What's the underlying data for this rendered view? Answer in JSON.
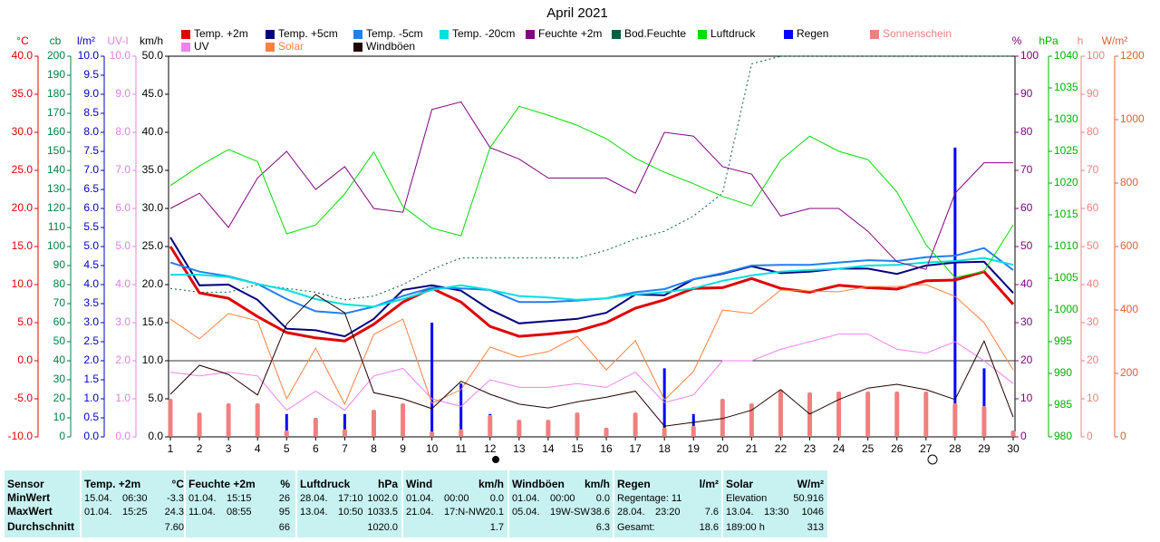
{
  "chart_data": {
    "type": "line",
    "title": "April 2021",
    "x": [
      1,
      2,
      3,
      4,
      5,
      6,
      7,
      8,
      9,
      10,
      11,
      12,
      13,
      14,
      15,
      16,
      17,
      18,
      19,
      20,
      21,
      22,
      23,
      24,
      25,
      26,
      27,
      28,
      29,
      30
    ],
    "xlim": [
      1,
      30
    ],
    "xticks": [
      1,
      2,
      3,
      4,
      5,
      6,
      7,
      8,
      9,
      10,
      11,
      12,
      13,
      14,
      15,
      16,
      17,
      18,
      19,
      20,
      21,
      22,
      23,
      24,
      25,
      26,
      27,
      28,
      29,
      30
    ],
    "axes": [
      {
        "label": "°C",
        "color": "#e00000",
        "side": "left",
        "lim": [
          -10,
          40
        ],
        "ticks": [
          {
            "value": 40,
            "label": "40.0"
          },
          {
            "value": 35,
            "label": "35.0"
          },
          {
            "value": 30,
            "label": "30.0"
          },
          {
            "value": 25,
            "label": "25.0"
          },
          {
            "value": 20,
            "label": "20.0"
          },
          {
            "value": 15,
            "label": "15.0"
          },
          {
            "value": 10,
            "label": "10.0"
          },
          {
            "value": 5,
            "label": "5.0"
          },
          {
            "value": 0,
            "label": "0.0"
          },
          {
            "value": -5,
            "label": "-5.0"
          },
          {
            "value": -10,
            "label": "-10.0"
          }
        ]
      },
      {
        "label": "cb",
        "color": "#008040",
        "side": "left",
        "lim": [
          0,
          200
        ],
        "ticks": [
          200,
          190,
          180,
          170,
          160,
          150,
          140,
          130,
          120,
          110,
          100,
          90,
          80,
          70,
          60,
          50,
          40,
          30,
          20,
          10,
          0
        ]
      },
      {
        "label": "l/m²",
        "color": "#0000c0",
        "side": "left",
        "lim": [
          0,
          10
        ],
        "ticks": [
          {
            "value": 10,
            "label": "10.0"
          },
          {
            "value": 9.5,
            "label": "9.5"
          },
          {
            "value": 9,
            "label": "9.0"
          },
          {
            "value": 8.5,
            "label": "8.5"
          },
          {
            "value": 8,
            "label": "8.0"
          },
          {
            "value": 7.5,
            "label": "7.5"
          },
          {
            "value": 7,
            "label": "7.0"
          },
          {
            "value": 6.5,
            "label": "6.5"
          },
          {
            "value": 6,
            "label": "6.0"
          },
          {
            "value": 5.5,
            "label": "5.5"
          },
          {
            "value": 5,
            "label": "5.0"
          },
          {
            "value": 4.5,
            "label": "4.5"
          },
          {
            "value": 4,
            "label": "4.0"
          },
          {
            "value": 3.5,
            "label": "3.5"
          },
          {
            "value": 3,
            "label": "3.0"
          },
          {
            "value": 2.5,
            "label": "2.5"
          },
          {
            "value": 2,
            "label": "2.0"
          },
          {
            "value": 1.5,
            "label": "1.5"
          },
          {
            "value": 1,
            "label": "1.0"
          },
          {
            "value": 0.5,
            "label": "0.5"
          },
          {
            "value": 0,
            "label": "0.0"
          }
        ]
      },
      {
        "label": "UV-I",
        "color": "#e080e0",
        "side": "left",
        "lim": [
          0,
          10
        ],
        "ticks": [
          {
            "value": 10,
            "label": "10.0"
          },
          {
            "value": 9,
            "label": "9.0"
          },
          {
            "value": 8,
            "label": "8.0"
          },
          {
            "value": 7,
            "label": "7.0"
          },
          {
            "value": 6,
            "label": "6.0"
          },
          {
            "value": 5,
            "label": "5.0"
          },
          {
            "value": 4,
            "label": "4.0"
          },
          {
            "value": 3,
            "label": "3.0"
          },
          {
            "value": 2,
            "label": "2.0"
          },
          {
            "value": 1,
            "label": "1.0"
          },
          {
            "value": 0,
            "label": "0.0"
          }
        ]
      },
      {
        "label": "km/h",
        "color": "#000000",
        "side": "left",
        "lim": [
          0,
          50
        ],
        "ticks": [
          {
            "value": 50,
            "label": "50.0"
          },
          {
            "value": 45,
            "label": "45.0"
          },
          {
            "value": 40,
            "label": "40.0"
          },
          {
            "value": 35,
            "label": "35.0"
          },
          {
            "value": 30,
            "label": "30.0"
          },
          {
            "value": 25,
            "label": "25.0"
          },
          {
            "value": 20,
            "label": "20.0"
          },
          {
            "value": 15,
            "label": "15.0"
          },
          {
            "value": 10,
            "label": "10.0"
          },
          {
            "value": 5,
            "label": "5.0"
          },
          {
            "value": 0,
            "label": "0.0"
          }
        ]
      },
      {
        "label": "%",
        "color": "#800080",
        "side": "right",
        "lim": [
          0,
          100
        ],
        "ticks": [
          100,
          90,
          80,
          70,
          60,
          50,
          40,
          30,
          20,
          10,
          0
        ]
      },
      {
        "label": "hPa",
        "color": "#00b000",
        "side": "right",
        "lim": [
          980,
          1040
        ],
        "ticks": [
          1040,
          1035,
          1030,
          1025,
          1020,
          1015,
          1010,
          1005,
          1000,
          995,
          990,
          985,
          980
        ]
      },
      {
        "label": "h",
        "color": "#f08080",
        "side": "right",
        "lim": [
          0,
          100
        ],
        "ticks": [
          100,
          90,
          80,
          70,
          60,
          50,
          40,
          30,
          20,
          10,
          0
        ]
      },
      {
        "label": "W/m²",
        "color": "#e06030",
        "side": "right",
        "lim": [
          0,
          1200
        ],
        "ticks": [
          1200,
          1000,
          800,
          600,
          400,
          200,
          0
        ]
      }
    ],
    "series": [
      {
        "name": "Temp. +2m",
        "color": "#e00000",
        "axis": "°C",
        "kind": "line",
        "width": 3,
        "values": [
          15.0,
          8.9,
          8.2,
          5.8,
          3.7,
          3.0,
          2.6,
          4.8,
          7.7,
          9.5,
          7.7,
          4.5,
          3.2,
          3.5,
          3.9,
          5.0,
          6.9,
          8.0,
          9.5,
          9.6,
          10.8,
          9.5,
          9.0,
          9.9,
          9.6,
          9.4,
          10.5,
          10.6,
          11.7,
          7.4
        ]
      },
      {
        "name": "Temp. +5cm",
        "color": "#000080",
        "axis": "°C",
        "kind": "line",
        "width": 2,
        "values": [
          16.2,
          9.9,
          10.0,
          8.0,
          4.2,
          4.0,
          3.2,
          5.5,
          9.3,
          9.9,
          9.2,
          6.7,
          4.9,
          5.2,
          5.5,
          6.3,
          8.7,
          8.6,
          10.7,
          11.4,
          12.4,
          11.5,
          11.7,
          12.1,
          12.1,
          11.4,
          12.5,
          12.9,
          13.0,
          8.9
        ]
      },
      {
        "name": "Temp. -5cm",
        "color": "#1e80f0",
        "axis": "°C",
        "kind": "line",
        "width": 2,
        "values": [
          12.9,
          11.7,
          11.1,
          10.1,
          8.1,
          6.5,
          6.2,
          7.1,
          8.5,
          9.6,
          9.5,
          9.3,
          7.7,
          7.7,
          7.9,
          8.2,
          9.0,
          9.4,
          10.7,
          11.5,
          12.5,
          12.6,
          12.6,
          12.9,
          13.2,
          13.1,
          13.6,
          13.8,
          14.8,
          11.9
        ]
      },
      {
        "name": "Temp. -20cm",
        "color": "#00e0e0",
        "axis": "°C",
        "kind": "line",
        "width": 2,
        "values": [
          11.3,
          11.3,
          11.0,
          10.1,
          9.3,
          8.1,
          7.4,
          7.1,
          8.1,
          9.3,
          9.9,
          9.3,
          8.5,
          8.3,
          8.0,
          8.2,
          8.7,
          9.0,
          9.5,
          10.5,
          11.2,
          11.7,
          11.9,
          12.1,
          12.5,
          12.6,
          12.9,
          13.1,
          13.5,
          12.6
        ]
      },
      {
        "name": "Feuchte +2m",
        "color": "#800080",
        "axis": "%",
        "kind": "line",
        "width": 1,
        "values": [
          60,
          64,
          55,
          68,
          75,
          65,
          71,
          60,
          59,
          86,
          88,
          76,
          73,
          68,
          68,
          68,
          64,
          80,
          79,
          71,
          69,
          58,
          60,
          60,
          54,
          46,
          44,
          64,
          72,
          72
        ]
      },
      {
        "name": "Bod.Feuchte",
        "color": "#006040",
        "axis": "%",
        "kind": "dashed",
        "width": 1,
        "values": [
          39,
          38,
          38,
          40,
          39,
          38,
          36,
          37,
          40,
          44,
          47,
          47,
          47,
          47,
          47,
          49,
          52,
          54,
          58,
          64,
          98,
          100,
          100,
          100,
          100,
          100,
          100,
          100,
          100,
          100
        ]
      },
      {
        "name": "Luftdruck",
        "color": "#00dd00",
        "axis": "hPa",
        "kind": "line",
        "width": 1,
        "values": [
          1019.6,
          1022.7,
          1025.3,
          1023.4,
          1012.0,
          1013.4,
          1018.3,
          1024.9,
          1016.3,
          1012.9,
          1011.7,
          1025.6,
          1032.1,
          1030.7,
          1029.1,
          1027.0,
          1023.9,
          1021.7,
          1019.9,
          1017.9,
          1016.4,
          1023.6,
          1027.4,
          1025.0,
          1023.7,
          1018.6,
          1010.3,
          1005.1,
          1006.1,
          1013.4
        ]
      },
      {
        "name": "Regen",
        "color": "#0000ff",
        "axis": "l/m²",
        "kind": "bar",
        "width": 3,
        "values": [
          0,
          0,
          0,
          0,
          0.6,
          0.5,
          0.6,
          0,
          0.1,
          3.0,
          1.4,
          0.6,
          0,
          0,
          0,
          0,
          0,
          1.8,
          0.6,
          0,
          0,
          0,
          0,
          0,
          0,
          0,
          0,
          7.6,
          1.8,
          0
        ]
      },
      {
        "name": "Sonnenschein",
        "color": "#f08080",
        "axis": "h",
        "kind": "bar",
        "width": 5,
        "values": [
          10,
          6.4,
          8.8,
          8.8,
          1.7,
          5,
          2,
          7.1,
          8.8,
          1.4,
          2,
          5.7,
          4.5,
          4.5,
          6.4,
          2.4,
          6.4,
          2.4,
          2.9,
          10,
          8.8,
          12.4,
          11.7,
          11.9,
          11.9,
          11.9,
          11.9,
          8.8,
          8.1,
          1.7
        ]
      },
      {
        "name": "UV",
        "color": "#ee82ee",
        "axis": "UV-I",
        "kind": "line",
        "width": 1,
        "values": [
          1.7,
          1.6,
          1.7,
          1.6,
          0.7,
          1.2,
          0.7,
          1.6,
          1.8,
          1.0,
          0.8,
          1.5,
          1.3,
          1.3,
          1.4,
          1.3,
          1.7,
          0.9,
          1.1,
          2.0,
          2.0,
          2.3,
          2.5,
          2.7,
          2.7,
          2.3,
          2.2,
          2.5,
          2.0,
          1.4
        ]
      },
      {
        "name": "Solar",
        "color": "#ff8040",
        "axis": "W/m²",
        "kind": "line",
        "width": 1,
        "values": [
          371,
          309,
          389,
          366,
          120,
          280,
          103,
          323,
          371,
          106,
          149,
          283,
          251,
          269,
          317,
          211,
          303,
          117,
          206,
          400,
          389,
          463,
          460,
          457,
          474,
          474,
          480,
          443,
          360,
          211
        ]
      },
      {
        "name": "Windböen",
        "color": "#200000",
        "axis": "km/h",
        "kind": "line",
        "width": 1,
        "values": [
          5.6,
          9.4,
          8.2,
          5.5,
          14.8,
          18.7,
          16.3,
          5.8,
          5.0,
          3.7,
          7.3,
          5.6,
          4.3,
          3.8,
          4.6,
          5.2,
          6.0,
          1.4,
          1.9,
          2.4,
          3.5,
          6.2,
          3.0,
          4.9,
          6.4,
          6.9,
          6.2,
          4.9,
          12.6,
          2.6
        ]
      }
    ]
  },
  "summary": [
    {
      "header": "Sensor",
      "rows": [
        {
          "l": "MinWert"
        },
        {
          "l": "MaxWert"
        },
        {
          "l": "Durchschnitt"
        }
      ]
    },
    {
      "header": "Temp. +2m",
      "unit": "°C",
      "rows": [
        {
          "l": "15.04.",
          "m": "06:30",
          "r": "-3.3"
        },
        {
          "l": "01.04.",
          "m": "15:25",
          "r": "24.3"
        },
        {
          "r": "7.60"
        }
      ]
    },
    {
      "header": "Feuchte +2m",
      "unit": "%",
      "rows": [
        {
          "l": "01.04.",
          "m": "15:15",
          "r": "26"
        },
        {
          "l": "11.04.",
          "m": "08:55",
          "r": "95"
        },
        {
          "r": "66"
        }
      ]
    },
    {
      "header": "Luftdruck",
      "unit": "hPa",
      "rows": [
        {
          "l": "28.04.",
          "m": "17:10",
          "r": "1002.0"
        },
        {
          "l": "13.04.",
          "m": "10:50",
          "r": "1033.5"
        },
        {
          "r": "1020.0"
        }
      ]
    },
    {
      "header": "Wind",
      "unit": "km/h",
      "rows": [
        {
          "l": "01.04.",
          "m": "00:00",
          "r": "0.0"
        },
        {
          "l": "21.04.",
          "m": "17:N-NW",
          "r": "20.1"
        },
        {
          "r": "1.7"
        }
      ]
    },
    {
      "header": "Windböen",
      "unit": "km/h",
      "rows": [
        {
          "l": "01.04.",
          "m": "00:00",
          "r": "0.0"
        },
        {
          "l": "05.04.",
          "m": "19W-SW",
          "r": "38.6"
        },
        {
          "r": "6.3"
        }
      ]
    },
    {
      "header": "Regen",
      "unit": "l/m²",
      "rows": [
        {
          "l": "Regentage: 11"
        },
        {
          "l": "28.04.",
          "m": "23:20",
          "r": "7.6"
        },
        {
          "l": "Gesamt:",
          "r": "18.6"
        }
      ]
    },
    {
      "header": "Solar",
      "unit": "W/m²",
      "rows": [
        {
          "l": "Elevation",
          "r": "50.916"
        },
        {
          "l": "13.04.",
          "m": "13:30",
          "r": "1046"
        },
        {
          "l": "189:00 h",
          "r": "313"
        }
      ]
    }
  ]
}
